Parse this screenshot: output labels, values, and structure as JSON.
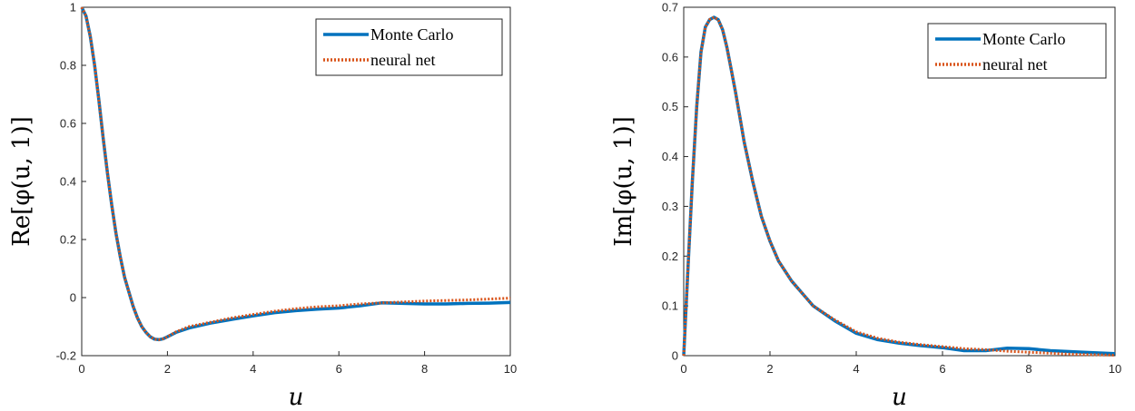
{
  "chart_data": [
    {
      "type": "line",
      "xlabel": "u",
      "ylabel": "Re[φ(u, 1)]",
      "xlim": [
        0,
        10
      ],
      "ylim": [
        -0.2,
        1
      ],
      "xticks": [
        "0",
        "2",
        "4",
        "6",
        "8",
        "10"
      ],
      "yticks": [
        "-0.2",
        "0",
        "0.2",
        "0.4",
        "0.6",
        "0.8",
        "1"
      ],
      "grid": false,
      "legend_position": "top-right",
      "series": [
        {
          "name": "Monte Carlo",
          "color": "#0072BD",
          "style": "solid",
          "x": [
            0,
            0.1,
            0.2,
            0.3,
            0.4,
            0.5,
            0.6,
            0.7,
            0.8,
            0.9,
            1.0,
            1.1,
            1.2,
            1.3,
            1.4,
            1.5,
            1.6,
            1.7,
            1.8,
            1.9,
            2.0,
            2.2,
            2.5,
            3.0,
            3.5,
            4.0,
            4.5,
            5.0,
            5.5,
            6.0,
            6.5,
            7.0,
            7.5,
            8.0,
            8.5,
            9.0,
            9.5,
            10.0
          ],
          "y": [
            1.0,
            0.97,
            0.9,
            0.8,
            0.68,
            0.55,
            0.43,
            0.32,
            0.22,
            0.14,
            0.07,
            0.02,
            -0.03,
            -0.07,
            -0.1,
            -0.12,
            -0.135,
            -0.143,
            -0.145,
            -0.142,
            -0.135,
            -0.12,
            -0.105,
            -0.088,
            -0.075,
            -0.063,
            -0.052,
            -0.045,
            -0.04,
            -0.036,
            -0.028,
            -0.018,
            -0.02,
            -0.022,
            -0.022,
            -0.02,
            -0.019,
            -0.017
          ]
        },
        {
          "name": "neural net",
          "color": "#D95319",
          "style": "dotted",
          "x": [
            0,
            0.1,
            0.2,
            0.3,
            0.4,
            0.5,
            0.6,
            0.7,
            0.8,
            0.9,
            1.0,
            1.1,
            1.2,
            1.3,
            1.4,
            1.5,
            1.6,
            1.7,
            1.8,
            1.9,
            2.0,
            2.2,
            2.5,
            3.0,
            3.5,
            4.0,
            4.5,
            5.0,
            5.5,
            6.0,
            6.5,
            7.0,
            7.5,
            8.0,
            8.5,
            9.0,
            9.5,
            10.0
          ],
          "y": [
            1.0,
            0.97,
            0.9,
            0.8,
            0.68,
            0.55,
            0.43,
            0.32,
            0.22,
            0.14,
            0.07,
            0.02,
            -0.03,
            -0.07,
            -0.1,
            -0.12,
            -0.135,
            -0.143,
            -0.145,
            -0.142,
            -0.135,
            -0.118,
            -0.1,
            -0.085,
            -0.07,
            -0.058,
            -0.047,
            -0.038,
            -0.032,
            -0.028,
            -0.022,
            -0.018,
            -0.015,
            -0.012,
            -0.01,
            -0.008,
            -0.005,
            -0.002
          ]
        }
      ]
    },
    {
      "type": "line",
      "xlabel": "u",
      "ylabel": "Im[φ(u, 1)]",
      "xlim": [
        0,
        10
      ],
      "ylim": [
        0,
        0.7
      ],
      "xticks": [
        "0",
        "2",
        "4",
        "6",
        "8",
        "10"
      ],
      "yticks": [
        "0",
        "0.1",
        "0.2",
        "0.3",
        "0.4",
        "0.5",
        "0.6",
        "0.7"
      ],
      "grid": false,
      "legend_position": "top-right",
      "series": [
        {
          "name": "Monte Carlo",
          "color": "#0072BD",
          "style": "solid",
          "x": [
            0,
            0.1,
            0.2,
            0.3,
            0.4,
            0.5,
            0.6,
            0.7,
            0.8,
            0.9,
            1.0,
            1.1,
            1.2,
            1.3,
            1.4,
            1.5,
            1.6,
            1.8,
            2.0,
            2.2,
            2.5,
            3.0,
            3.5,
            4.0,
            4.5,
            5.0,
            5.5,
            6.0,
            6.5,
            7.0,
            7.5,
            8.0,
            8.5,
            9.0,
            9.5,
            10.0
          ],
          "y": [
            0.0,
            0.18,
            0.35,
            0.5,
            0.61,
            0.66,
            0.675,
            0.68,
            0.675,
            0.655,
            0.62,
            0.575,
            0.53,
            0.48,
            0.43,
            0.39,
            0.35,
            0.28,
            0.23,
            0.19,
            0.15,
            0.1,
            0.07,
            0.045,
            0.032,
            0.025,
            0.02,
            0.016,
            0.01,
            0.01,
            0.015,
            0.014,
            0.01,
            0.008,
            0.006,
            0.004
          ]
        },
        {
          "name": "neural net",
          "color": "#D95319",
          "style": "dotted",
          "x": [
            0,
            0.1,
            0.2,
            0.3,
            0.4,
            0.5,
            0.6,
            0.7,
            0.8,
            0.9,
            1.0,
            1.1,
            1.2,
            1.3,
            1.4,
            1.5,
            1.6,
            1.8,
            2.0,
            2.2,
            2.5,
            3.0,
            3.5,
            4.0,
            4.5,
            5.0,
            5.5,
            6.0,
            6.5,
            7.0,
            7.5,
            8.0,
            8.5,
            9.0,
            9.5,
            10.0
          ],
          "y": [
            0.0,
            0.18,
            0.35,
            0.5,
            0.61,
            0.66,
            0.675,
            0.68,
            0.675,
            0.655,
            0.62,
            0.575,
            0.53,
            0.48,
            0.43,
            0.39,
            0.35,
            0.28,
            0.23,
            0.19,
            0.15,
            0.1,
            0.072,
            0.048,
            0.035,
            0.027,
            0.022,
            0.018,
            0.014,
            0.012,
            0.009,
            0.007,
            0.005,
            0.003,
            0.002,
            0.001
          ]
        }
      ]
    }
  ]
}
